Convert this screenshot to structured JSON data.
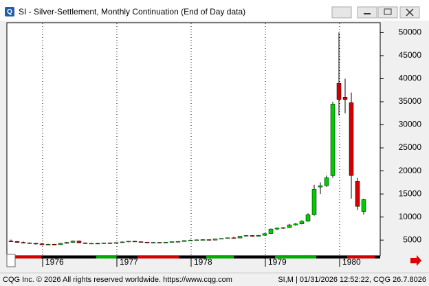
{
  "window_title": "SI - Silver-Settlement, Monthly Continuation (End of Day data)",
  "chart_data": {
    "type": "candlestick",
    "categories": [
      null,
      null,
      null,
      null,
      null,
      "1976",
      null,
      null,
      null,
      null,
      null,
      null,
      null,
      null,
      null,
      null,
      null,
      "1977",
      null,
      null,
      null,
      null,
      null,
      null,
      null,
      null,
      null,
      null,
      null,
      "1978",
      null,
      null,
      null,
      null,
      null,
      null,
      null,
      null,
      null,
      null,
      null,
      "1979",
      null,
      null,
      null,
      null,
      null,
      null,
      null,
      null,
      null,
      null,
      null,
      "1980",
      null,
      null,
      null,
      null
    ],
    "open": [
      4800,
      4700,
      4500,
      4400,
      4300,
      4200,
      4000,
      4100,
      4000,
      4300,
      4500,
      4800,
      4400,
      4250,
      4300,
      4250,
      4400,
      4350,
      4450,
      4600,
      4750,
      4650,
      4550,
      4450,
      4500,
      4400,
      4550,
      4650,
      4700,
      4900,
      5000,
      5050,
      5100,
      5000,
      5250,
      5350,
      5500,
      5450,
      5850,
      6000,
      5800,
      6050,
      6400,
      7400,
      7600,
      7700,
      8300,
      8500,
      9100,
      10500,
      16500,
      16800,
      19000,
      39000,
      36000,
      34800,
      17800,
      11200
    ],
    "high": [
      5100,
      4800,
      4700,
      4500,
      4400,
      4300,
      4200,
      4200,
      4400,
      4600,
      4900,
      4900,
      4500,
      4400,
      4400,
      4450,
      4500,
      4500,
      4700,
      4800,
      4850,
      4700,
      4600,
      4600,
      4550,
      4600,
      4700,
      4800,
      4950,
      5100,
      5150,
      5200,
      5150,
      5300,
      5400,
      5550,
      5700,
      5900,
      6100,
      6050,
      6100,
      6500,
      7500,
      7700,
      7800,
      8500,
      8700,
      9300,
      10800,
      17000,
      17500,
      19000,
      35000,
      50000,
      40000,
      37000,
      18500,
      14000
    ],
    "low": [
      4600,
      4400,
      4300,
      4200,
      4000,
      3900,
      3900,
      3900,
      3950,
      4200,
      4400,
      4300,
      4200,
      4150,
      4200,
      4200,
      4300,
      4300,
      4400,
      4550,
      4600,
      4500,
      4400,
      4400,
      4350,
      4350,
      4500,
      4600,
      4650,
      4850,
      4900,
      4950,
      4950,
      4950,
      5200,
      5300,
      5400,
      5400,
      5800,
      5700,
      5750,
      6000,
      6300,
      7200,
      7400,
      7600,
      8100,
      8400,
      9000,
      10300,
      15000,
      16500,
      18500,
      32000,
      32500,
      14000,
      11500,
      10500
    ],
    "close": [
      4700,
      4500,
      4400,
      4300,
      4200,
      4000,
      4100,
      4000,
      4300,
      4500,
      4800,
      4400,
      4250,
      4300,
      4250,
      4400,
      4350,
      4450,
      4600,
      4750,
      4650,
      4550,
      4450,
      4500,
      4400,
      4550,
      4650,
      4700,
      4900,
      5000,
      5050,
      5100,
      5000,
      5250,
      5350,
      5500,
      5450,
      5850,
      6000,
      5800,
      6050,
      6400,
      7400,
      7600,
      7700,
      8300,
      8500,
      9100,
      10500,
      16000,
      16800,
      18500,
      34500,
      35500,
      35500,
      19000,
      12300,
      13800
    ],
    "up_color": "#00cc00",
    "down_color": "#d40000",
    "ylim": [
      1900,
      52000
    ],
    "yticks": [
      5000,
      10000,
      15000,
      20000,
      25000,
      30000,
      35000,
      40000,
      45000,
      50000
    ],
    "grid": "x"
  },
  "footer": {
    "left": "CQG Inc. © 2026 All rights reserved worldwide. https://www.cqg.com",
    "right": "SI,M | 01/31/2026 12:52:22, CQG 26.7.8026"
  }
}
